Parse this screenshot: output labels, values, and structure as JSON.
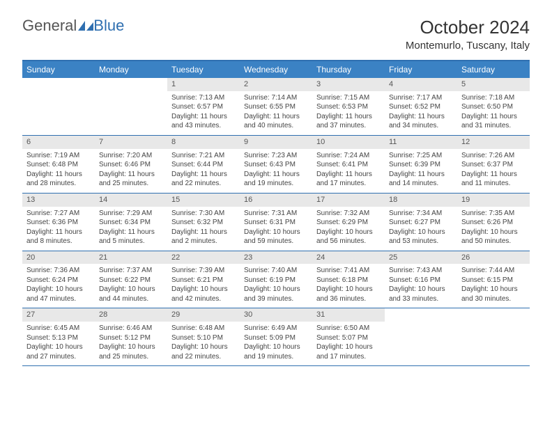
{
  "brand": {
    "part1": "General",
    "part2": "Blue"
  },
  "title": "October 2024",
  "location": "Montemurlo, Tuscany, Italy",
  "colors": {
    "header_bg": "#3b82c4",
    "border": "#2f6fb0",
    "daynum_bg": "#e8e8e8",
    "text": "#333333"
  },
  "day_headers": [
    "Sunday",
    "Monday",
    "Tuesday",
    "Wednesday",
    "Thursday",
    "Friday",
    "Saturday"
  ],
  "leading_blanks": 2,
  "days": [
    {
      "n": 1,
      "sunrise": "7:13 AM",
      "sunset": "6:57 PM",
      "daylight": "11 hours and 43 minutes."
    },
    {
      "n": 2,
      "sunrise": "7:14 AM",
      "sunset": "6:55 PM",
      "daylight": "11 hours and 40 minutes."
    },
    {
      "n": 3,
      "sunrise": "7:15 AM",
      "sunset": "6:53 PM",
      "daylight": "11 hours and 37 minutes."
    },
    {
      "n": 4,
      "sunrise": "7:17 AM",
      "sunset": "6:52 PM",
      "daylight": "11 hours and 34 minutes."
    },
    {
      "n": 5,
      "sunrise": "7:18 AM",
      "sunset": "6:50 PM",
      "daylight": "11 hours and 31 minutes."
    },
    {
      "n": 6,
      "sunrise": "7:19 AM",
      "sunset": "6:48 PM",
      "daylight": "11 hours and 28 minutes."
    },
    {
      "n": 7,
      "sunrise": "7:20 AM",
      "sunset": "6:46 PM",
      "daylight": "11 hours and 25 minutes."
    },
    {
      "n": 8,
      "sunrise": "7:21 AM",
      "sunset": "6:44 PM",
      "daylight": "11 hours and 22 minutes."
    },
    {
      "n": 9,
      "sunrise": "7:23 AM",
      "sunset": "6:43 PM",
      "daylight": "11 hours and 19 minutes."
    },
    {
      "n": 10,
      "sunrise": "7:24 AM",
      "sunset": "6:41 PM",
      "daylight": "11 hours and 17 minutes."
    },
    {
      "n": 11,
      "sunrise": "7:25 AM",
      "sunset": "6:39 PM",
      "daylight": "11 hours and 14 minutes."
    },
    {
      "n": 12,
      "sunrise": "7:26 AM",
      "sunset": "6:37 PM",
      "daylight": "11 hours and 11 minutes."
    },
    {
      "n": 13,
      "sunrise": "7:27 AM",
      "sunset": "6:36 PM",
      "daylight": "11 hours and 8 minutes."
    },
    {
      "n": 14,
      "sunrise": "7:29 AM",
      "sunset": "6:34 PM",
      "daylight": "11 hours and 5 minutes."
    },
    {
      "n": 15,
      "sunrise": "7:30 AM",
      "sunset": "6:32 PM",
      "daylight": "11 hours and 2 minutes."
    },
    {
      "n": 16,
      "sunrise": "7:31 AM",
      "sunset": "6:31 PM",
      "daylight": "10 hours and 59 minutes."
    },
    {
      "n": 17,
      "sunrise": "7:32 AM",
      "sunset": "6:29 PM",
      "daylight": "10 hours and 56 minutes."
    },
    {
      "n": 18,
      "sunrise": "7:34 AM",
      "sunset": "6:27 PM",
      "daylight": "10 hours and 53 minutes."
    },
    {
      "n": 19,
      "sunrise": "7:35 AM",
      "sunset": "6:26 PM",
      "daylight": "10 hours and 50 minutes."
    },
    {
      "n": 20,
      "sunrise": "7:36 AM",
      "sunset": "6:24 PM",
      "daylight": "10 hours and 47 minutes."
    },
    {
      "n": 21,
      "sunrise": "7:37 AM",
      "sunset": "6:22 PM",
      "daylight": "10 hours and 44 minutes."
    },
    {
      "n": 22,
      "sunrise": "7:39 AM",
      "sunset": "6:21 PM",
      "daylight": "10 hours and 42 minutes."
    },
    {
      "n": 23,
      "sunrise": "7:40 AM",
      "sunset": "6:19 PM",
      "daylight": "10 hours and 39 minutes."
    },
    {
      "n": 24,
      "sunrise": "7:41 AM",
      "sunset": "6:18 PM",
      "daylight": "10 hours and 36 minutes."
    },
    {
      "n": 25,
      "sunrise": "7:43 AM",
      "sunset": "6:16 PM",
      "daylight": "10 hours and 33 minutes."
    },
    {
      "n": 26,
      "sunrise": "7:44 AM",
      "sunset": "6:15 PM",
      "daylight": "10 hours and 30 minutes."
    },
    {
      "n": 27,
      "sunrise": "6:45 AM",
      "sunset": "5:13 PM",
      "daylight": "10 hours and 27 minutes."
    },
    {
      "n": 28,
      "sunrise": "6:46 AM",
      "sunset": "5:12 PM",
      "daylight": "10 hours and 25 minutes."
    },
    {
      "n": 29,
      "sunrise": "6:48 AM",
      "sunset": "5:10 PM",
      "daylight": "10 hours and 22 minutes."
    },
    {
      "n": 30,
      "sunrise": "6:49 AM",
      "sunset": "5:09 PM",
      "daylight": "10 hours and 19 minutes."
    },
    {
      "n": 31,
      "sunrise": "6:50 AM",
      "sunset": "5:07 PM",
      "daylight": "10 hours and 17 minutes."
    }
  ],
  "labels": {
    "sunrise": "Sunrise:",
    "sunset": "Sunset:",
    "daylight": "Daylight:"
  }
}
